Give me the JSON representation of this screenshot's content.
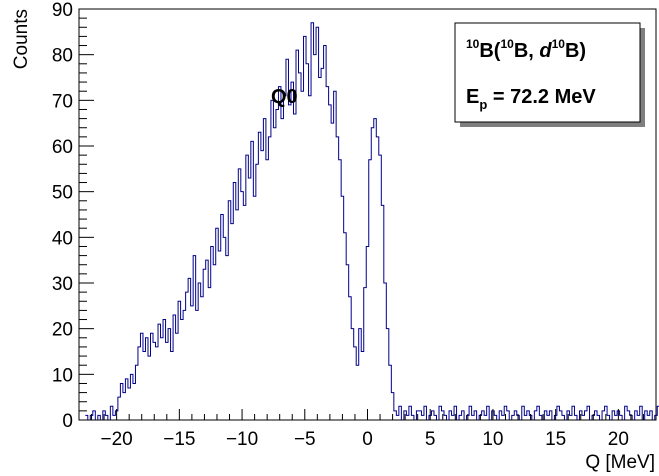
{
  "chart_data": {
    "type": "histogram",
    "xlabel": "Q [MeV]",
    "ylabel": "Counts",
    "xlim": [
      -23,
      23
    ],
    "ylim": [
      0,
      90
    ],
    "x_ticks": [
      -20,
      -15,
      -10,
      -5,
      0,
      5,
      10,
      15,
      20
    ],
    "x_tick_labels": [
      "−20",
      "−15",
      "−10",
      "−5",
      "0",
      "5",
      "10",
      "15",
      "20"
    ],
    "y_ticks": [
      0,
      10,
      20,
      30,
      40,
      50,
      60,
      70,
      80,
      90
    ],
    "y_tick_labels": [
      "0",
      "10",
      "20",
      "30",
      "40",
      "50",
      "60",
      "70",
      "80",
      "90"
    ],
    "grid": false,
    "line_color": "#00008b",
    "peak_label": "Q0",
    "reaction_label": {
      "sup1": "10",
      "t1": "B(",
      "sup2": "10",
      "t2": "B, ",
      "t3": "d",
      "sup3": "10",
      "t4": "B)"
    },
    "energy_label": {
      "t1": "E",
      "sub": "p",
      "t2": " = 72.2 MeV"
    },
    "bins": {
      "x_start": -22.5,
      "bin_width": 0.2,
      "counts": [
        1,
        0,
        1,
        2,
        0,
        1,
        0,
        2,
        1,
        0,
        3,
        1,
        2,
        5,
        8,
        6,
        9,
        7,
        10,
        8,
        12,
        16,
        19,
        15,
        18,
        14,
        19,
        17,
        16,
        21,
        18,
        22,
        17,
        20,
        15,
        23,
        19,
        26,
        22,
        24,
        28,
        31,
        25,
        36,
        24,
        30,
        27,
        33,
        35,
        29,
        38,
        34,
        42,
        37,
        45,
        40,
        36,
        48,
        43,
        52,
        46,
        55,
        50,
        47,
        58,
        53,
        61,
        49,
        56,
        63,
        59,
        66,
        57,
        62,
        70,
        64,
        68,
        73,
        66,
        71,
        79,
        69,
        74,
        67,
        81,
        76,
        72,
        84,
        78,
        71,
        87,
        80,
        86,
        75,
        77,
        82,
        73,
        69,
        65,
        72,
        62,
        57,
        49,
        41,
        34,
        27,
        20,
        16,
        12,
        20,
        15,
        29,
        38,
        57,
        64,
        66,
        62,
        58,
        47,
        30,
        20,
        12,
        6,
        2,
        1,
        3,
        0,
        2,
        1,
        3,
        1,
        0,
        2,
        2,
        1,
        3,
        0,
        1,
        2,
        1,
        0,
        3,
        2,
        1,
        0,
        2,
        1,
        3,
        0,
        1,
        2,
        0,
        1,
        3,
        1,
        2,
        0,
        1,
        2,
        1,
        3,
        0,
        2,
        1,
        0,
        2,
        1,
        3,
        2,
        0,
        1,
        2,
        1,
        0,
        3,
        1,
        2,
        1,
        0,
        2,
        3,
        1,
        0,
        2,
        1,
        2,
        0,
        1,
        3,
        2,
        1,
        0,
        2,
        1,
        3,
        1,
        0,
        2,
        1,
        2,
        3,
        0,
        1,
        2,
        1,
        0,
        2,
        3,
        1,
        0,
        2,
        1,
        2,
        1,
        0,
        3,
        2,
        1,
        0,
        2,
        1,
        3,
        0,
        2,
        1,
        2,
        0,
        1,
        3,
        1,
        2,
        0,
        1,
        2,
        1,
        3,
        0,
        2,
        1,
        0,
        2,
        1,
        2,
        3,
        1,
        0,
        2,
        1,
        0,
        2,
        1,
        3,
        0,
        1,
        2,
        1,
        0,
        2,
        3,
        1
      ]
    }
  }
}
